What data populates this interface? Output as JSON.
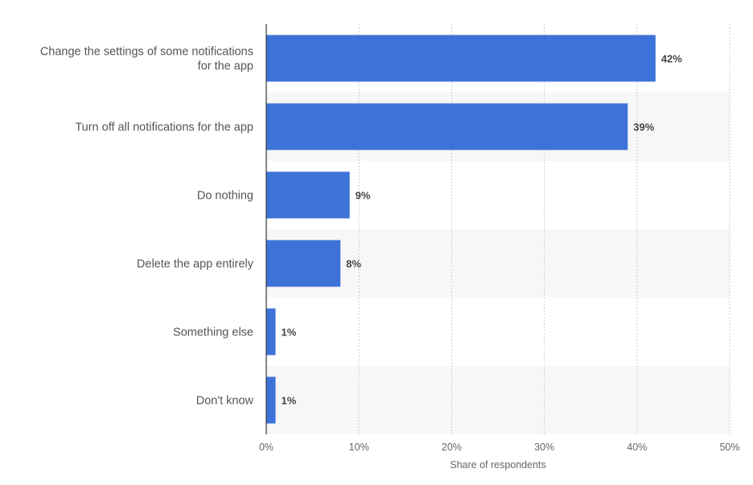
{
  "chart_data": {
    "type": "bar",
    "orientation": "horizontal",
    "categories": [
      [
        "Change the settings of some notifications",
        "for the app"
      ],
      [
        "Turn off all notifications for the app"
      ],
      [
        "Do nothing"
      ],
      [
        "Delete the app entirely"
      ],
      [
        "Something else"
      ],
      [
        "Don't know"
      ]
    ],
    "values": [
      42,
      39,
      9,
      8,
      1,
      1
    ],
    "value_labels": [
      "42%",
      "39%",
      "9%",
      "8%",
      "1%",
      "1%"
    ],
    "xlabel": "Share of respondents",
    "xlim": [
      0,
      50
    ],
    "xticks": [
      0,
      10,
      20,
      30,
      40,
      50
    ],
    "xtick_labels": [
      "0%",
      "10%",
      "20%",
      "30%",
      "40%",
      "50%"
    ],
    "grid": true,
    "colors": {
      "bar": "#3d73d9",
      "band": "#f7f7f7",
      "grid": "#cccccc",
      "axis": "#333333"
    }
  }
}
